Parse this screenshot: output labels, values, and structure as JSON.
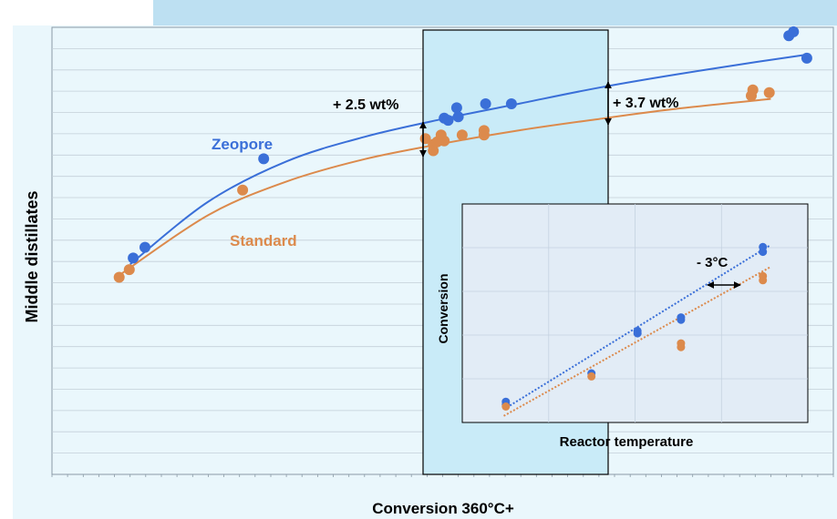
{
  "chart_data": [
    {
      "type": "scatter",
      "title": "",
      "xlabel": "Conversion 360°C+",
      "ylabel": "Middle distillates",
      "xlim": [
        0,
        100
      ],
      "ylim": [
        0,
        100
      ],
      "grid": true,
      "series": [
        {
          "name": "Zeopore",
          "color": "#3a6fd8",
          "points": [
            [
              10.4,
              48.4
            ],
            [
              11.9,
              50.8
            ],
            [
              27.1,
              70.6
            ],
            [
              50.2,
              79.7
            ],
            [
              50.7,
              79.2
            ],
            [
              51.8,
              82.0
            ],
            [
              52.0,
              80.0
            ],
            [
              55.5,
              82.9
            ],
            [
              58.8,
              82.9
            ],
            [
              94.3,
              98.1
            ],
            [
              94.9,
              99.0
            ],
            [
              96.6,
              93.1
            ]
          ],
          "fit": [
            [
              10,
              47
            ],
            [
              20,
              61
            ],
            [
              30,
              70
            ],
            [
              40,
              75.5
            ],
            [
              50,
              79.5
            ],
            [
              60,
              83
            ],
            [
              70,
              86.5
            ],
            [
              80,
              89.5
            ],
            [
              90,
              92.2
            ],
            [
              97,
              94
            ]
          ]
        },
        {
          "name": "Standard",
          "color": "#dc8a4c",
          "points": [
            [
              8.6,
              44.1
            ],
            [
              9.9,
              45.8
            ],
            [
              24.4,
              63.6
            ],
            [
              47.8,
              75.1
            ],
            [
              48.8,
              73.8
            ],
            [
              48.8,
              72.4
            ],
            [
              49.3,
              74.4
            ],
            [
              49.8,
              75.9
            ],
            [
              50.2,
              74.6
            ],
            [
              52.5,
              75.9
            ],
            [
              55.3,
              75.9
            ],
            [
              55.3,
              76.9
            ],
            [
              89.5,
              84.7
            ],
            [
              89.7,
              86.0
            ],
            [
              91.8,
              85.4
            ]
          ],
          "fit": [
            [
              9,
              45
            ],
            [
              20,
              58
            ],
            [
              30,
              65.5
            ],
            [
              40,
              70.5
            ],
            [
              50,
              74
            ],
            [
              60,
              77
            ],
            [
              70,
              79.5
            ],
            [
              80,
              81.8
            ],
            [
              92,
              84
            ]
          ]
        }
      ],
      "annotations": [
        "+ 2.5 wt%",
        "+ 3.7 wt%"
      ]
    },
    {
      "type": "scatter",
      "title": "",
      "xlabel": "Reactor temperature",
      "ylabel": "Conversion",
      "xlim": [
        0,
        100
      ],
      "ylim": [
        0,
        100
      ],
      "grid": true,
      "series": [
        {
          "name": "Zeopore",
          "color": "#3a6fd8",
          "points": [
            [
              12.6,
              8.2
            ],
            [
              12.6,
              9.5
            ],
            [
              37.4,
              22.5
            ],
            [
              50.7,
              40.8
            ],
            [
              50.7,
              41.9
            ],
            [
              63.3,
              47.0
            ],
            [
              63.3,
              48.1
            ],
            [
              87.0,
              78.1
            ],
            [
              87.0,
              80.3
            ]
          ],
          "fit": [
            [
              12,
              6
            ],
            [
              89,
              81
            ]
          ]
        },
        {
          "name": "Standard",
          "color": "#dc8a4c",
          "points": [
            [
              12.6,
              7.3
            ],
            [
              37.4,
              21.1
            ],
            [
              63.3,
              34.5
            ],
            [
              63.3,
              36.2
            ],
            [
              87.0,
              65.1
            ],
            [
              87.0,
              67.0
            ]
          ],
          "fit": [
            [
              12,
              3
            ],
            [
              89,
              71
            ]
          ]
        }
      ],
      "annotations": [
        "- 3°C"
      ]
    }
  ]
}
